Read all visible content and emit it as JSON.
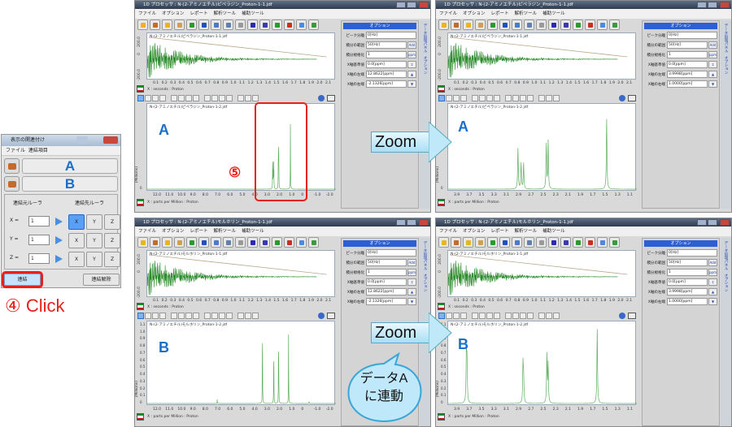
{
  "dialog": {
    "title": "表示の関連付け",
    "menu": [
      "ファイル",
      "連結項目"
    ],
    "link_a": "A",
    "link_b": "B",
    "source_ruler": "連結元ルーラ",
    "target_ruler": "連結先ルーラ",
    "rows": [
      {
        "axis": "X",
        "eq": "=",
        "value": "1",
        "selected": "X"
      },
      {
        "axis": "Y",
        "eq": "=",
        "value": "1",
        "selected": ""
      },
      {
        "axis": "Z",
        "eq": "=",
        "value": "1",
        "selected": ""
      }
    ],
    "targets": [
      "X",
      "Y",
      "Z"
    ],
    "connect": "連結",
    "disconnect": "連結解除"
  },
  "step4": "④ Click",
  "step5": "⑤",
  "zoom_label": "Zoom",
  "bubble": {
    "line1": "データA",
    "line2": "に連動"
  },
  "colors": {
    "accent_red": "#e8201a",
    "label_blue": "#1a6fc9",
    "spectrum": "#3a9a3a",
    "option_header": "#2c5fd4"
  },
  "common": {
    "menu": [
      "ファイル",
      "オプション",
      "レポート",
      "解析ツール",
      "補助ツール"
    ],
    "fid_axis_label": "X : seconds : Proton",
    "spec_axis_label": "X : parts per Million : Proton",
    "y_unit": "(Millions)",
    "options_title": "オプション",
    "side_tabs": [
      "データ処理パネル",
      "オプション"
    ],
    "opt_labels": [
      "ピーク分離",
      "積分の範囲",
      "積分規格化",
      "X軸基準値",
      "X軸の左端",
      "X軸の右端"
    ],
    "add_btn": "Add",
    "ppm_btn": "ppm",
    "fid_ticks": [
      "0.1",
      "0.2",
      "0.3",
      "0.4",
      "0.5",
      "0.6",
      "0.7",
      "0.8",
      "0.9",
      "1.0",
      "1.1",
      "1.2",
      "1.3",
      "1.4",
      "1.5",
      "1.6",
      "1.7",
      "1.8",
      "1.9",
      "2.0",
      "2.1"
    ],
    "fid_y_ticks": [
      "200.0",
      "0",
      "-200.0"
    ]
  },
  "windows": [
    {
      "title": "1D プロセッサ : N-(2-アミノエチル)ピペラジン_Proton-1-1.jdf",
      "fid_file": "N-(2-アミノエチル)ピペラジン_Proton-1-1.jdf",
      "spec_file": "N-(2-アミノエチル)ピペラジン_Proton-1-2.jdf",
      "label": "A",
      "options": [
        "0[Hz]",
        "50[Hz]",
        "1",
        "0.0[ppm]",
        "12.8622[ppm]",
        "-2.1326[ppm]"
      ],
      "xrange": [
        12.8622,
        -2.1326
      ],
      "x_ticks": [
        "12.0",
        "11.0",
        "10.0",
        "9.0",
        "8.0",
        "7.0",
        "6.0",
        "5.0",
        "4.0",
        "3.0",
        "2.0",
        "1.0",
        "0",
        "-1.0",
        "-2.0"
      ],
      "y_ticks": [
        "0"
      ]
    },
    {
      "title": "1D プロセッサ : N-(2-アミノエチル)ピペラジン_Proton-1-1.jdf",
      "fid_file": "N-(2-アミノエチル)ピペラジン_Proton-1-1.jdf",
      "spec_file": "N-(2-アミノエチル)ピペラジン_Proton-1-2.jdf",
      "label": "A",
      "options": [
        "0[Hz]",
        "50[Hz]",
        "1",
        "0.0[ppm]",
        "3.9998[ppm]",
        "1.0000[ppm]"
      ],
      "xrange": [
        3.9998,
        1.0
      ],
      "x_ticks": [
        "3.9",
        "3.7",
        "3.5",
        "3.3",
        "3.1",
        "2.9",
        "2.7",
        "2.5",
        "2.3",
        "2.1",
        "1.9",
        "1.7",
        "1.5",
        "1.3",
        "1.1"
      ],
      "y_ticks": [
        "0"
      ]
    },
    {
      "title": "1D プロセッサ : N-(2-アミノエチル)モルホリン_Proton-1-1.jdf",
      "fid_file": "N-(2-アミノエチル)モルホリン_Proton-1-1.jdf",
      "spec_file": "N-(2-アミノエチル)モルホリン_Proton-1-2.jdf",
      "label": "B",
      "options": [
        "0[Hz]",
        "50[Hz]",
        "1",
        "0.0[ppm]",
        "12.8622[ppm]",
        "-2.1326[ppm]"
      ],
      "xrange": [
        12.8622,
        -2.1326
      ],
      "x_ticks": [
        "12.0",
        "11.0",
        "10.0",
        "9.0",
        "8.0",
        "7.0",
        "6.0",
        "5.0",
        "4.0",
        "3.0",
        "2.0",
        "1.0",
        "0",
        "-1.0",
        "-2.0"
      ],
      "y_ticks": [
        "0",
        "0.1",
        "0.2",
        "0.3",
        "0.4",
        "0.5",
        "0.6",
        "0.7",
        "0.8",
        "0.9",
        "1.0",
        "1.1"
      ]
    },
    {
      "title": "1D プロセッサ : N-(2-アミノエチル)モルホリン_Proton-1-1.jdf",
      "fid_file": "N-(2-アミノエチル)モルホリン_Proton-1-1.jdf",
      "spec_file": "N-(2-アミノエチル)モルホリン_Proton-1-2.jdf",
      "label": "B",
      "options": [
        "0[Hz]",
        "50[Hz]",
        "1",
        "0.0[ppm]",
        "3.9998[ppm]",
        "1.0000[ppm]"
      ],
      "xrange": [
        3.9998,
        1.0
      ],
      "x_ticks": [
        "3.9",
        "3.7",
        "3.5",
        "3.3",
        "3.1",
        "2.9",
        "2.7",
        "2.5",
        "2.3",
        "2.1",
        "1.9",
        "1.7",
        "1.5",
        "1.3",
        "1.1"
      ],
      "y_ticks": [
        "0",
        "0.1",
        "0.2",
        "0.3",
        "0.4",
        "0.5",
        "0.6",
        "0.7",
        "0.8",
        "0.9",
        "1.0",
        "1.1"
      ]
    }
  ],
  "chart_data": [
    {
      "type": "line",
      "name": "A",
      "xlabel": "X : parts per Million : Proton",
      "ylabel": "(Millions)",
      "peaks_ppm": [
        2.89,
        2.84,
        2.8,
        2.44,
        2.41,
        1.48
      ],
      "relative_height": [
        0.55,
        0.35,
        0.35,
        0.6,
        0.65,
        0.95
      ]
    },
    {
      "type": "line",
      "name": "B",
      "xlabel": "X : parts per Million : Proton",
      "ylabel": "(Millions)",
      "ylim": [
        0,
        1.1
      ],
      "peaks_ppm": [
        7.3,
        3.71,
        3.7,
        2.81,
        2.8,
        2.43,
        2.41,
        1.63,
        0.0
      ],
      "relative_height": [
        0.06,
        0.7,
        0.55,
        0.55,
        0.35,
        0.68,
        0.55,
        1.05,
        0.03
      ]
    }
  ]
}
